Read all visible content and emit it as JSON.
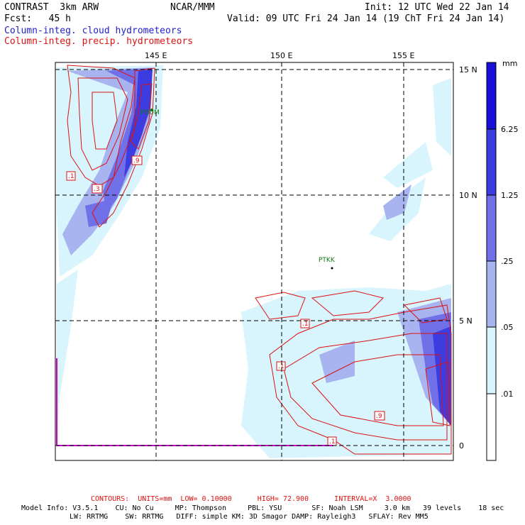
{
  "header": {
    "model": "CONTRAST  3km ARW",
    "fcst": "Fcst:   45 h",
    "center": "NCAR/MMM",
    "init": "Init: 12 UTC Wed 22 Jan 14",
    "valid": "Valid: 09 UTC Fri 24 Jan 14 (19 ChT Fri 24 Jan 14)",
    "field_cloud": "Column-integ. cloud hydrometeors",
    "field_precip": "Column-integ. precip. hydrometeors"
  },
  "map": {
    "lon_labels": [
      "145 E",
      "150 E",
      "155 E"
    ],
    "lat_labels": [
      "15 N",
      "10 N",
      "5 N",
      "0"
    ],
    "stations": [
      "PGUM",
      "PTKK"
    ],
    "contour_labels": [
      ".1",
      ".3",
      ".9",
      ".1",
      ".1",
      ".9",
      ".1"
    ]
  },
  "colorbar": {
    "unit": "mm",
    "levels": [
      "6.25",
      "1.25",
      ".25",
      ".05",
      ".01"
    ],
    "colors": [
      "#1a0fd8",
      "#3c3ce0",
      "#7070e8",
      "#a8b4f0",
      "#d8f4fc",
      "#ffffff"
    ]
  },
  "footer": {
    "contours": "CONTOURS:  UNITS=mm  LOW= 0.10000      HIGH= 72.900      INTERVAL=X  3.0000",
    "model_info": "Model Info: V3.5.1    CU: No Cu     MP: Thompson     PBL: YSU       SF: Noah LSM     3.0 km   39 levels    18 sec",
    "model_info2": "LW: RRTMG    SW: RRTMG   DIFF: simple KM: 3D Smagor DAMP: Rayleigh3   SFLAY: Rev MM5"
  }
}
